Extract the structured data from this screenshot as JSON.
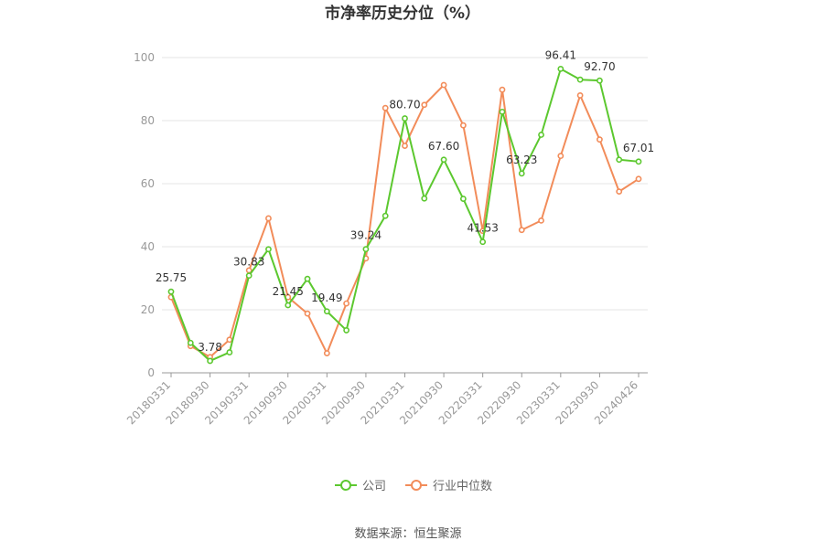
{
  "chart_data": {
    "type": "line",
    "title": "市净率历史分位（%）",
    "source": "数据来源：恒生聚源",
    "xlabel": "",
    "ylabel": "",
    "ylim": [
      0,
      100
    ],
    "yticks": [
      0,
      20,
      40,
      60,
      80,
      100
    ],
    "grid": true,
    "legend_position": "bottom",
    "x_tick_labels": [
      "20180331",
      "20180930",
      "20190331",
      "20190930",
      "20200331",
      "20200930",
      "20210331",
      "20210930",
      "20220331",
      "20220930",
      "20230331",
      "20230930",
      "20240426"
    ],
    "series": [
      {
        "name": "公司",
        "color": "#5cc82f",
        "values": [
          25.75,
          9.5,
          3.78,
          6.5,
          30.83,
          39.2,
          21.45,
          29.8,
          19.49,
          13.5,
          39.24,
          49.8,
          80.7,
          55.3,
          67.6,
          55.2,
          41.53,
          82.8,
          63.23,
          75.5,
          96.41,
          93.0,
          92.7,
          67.6,
          67.01
        ]
      },
      {
        "name": "行业中位数",
        "color": "#f28c5a",
        "values": [
          24.0,
          8.5,
          5.0,
          10.5,
          32.5,
          49.0,
          24.0,
          18.8,
          6.2,
          22.0,
          36.3,
          84.0,
          72.0,
          85.0,
          91.3,
          78.5,
          45.0,
          89.8,
          45.3,
          48.3,
          68.8,
          88.0,
          74.0,
          57.5,
          61.5
        ]
      }
    ],
    "annotations": [
      {
        "series": 0,
        "index": 0,
        "text": "25.75"
      },
      {
        "series": 0,
        "index": 2,
        "text": "3.78"
      },
      {
        "series": 0,
        "index": 4,
        "text": "30.83"
      },
      {
        "series": 0,
        "index": 6,
        "text": "21.45"
      },
      {
        "series": 0,
        "index": 8,
        "text": "19.49"
      },
      {
        "series": 0,
        "index": 10,
        "text": "39.24"
      },
      {
        "series": 0,
        "index": 12,
        "text": "80.70"
      },
      {
        "series": 0,
        "index": 14,
        "text": "67.60"
      },
      {
        "series": 0,
        "index": 16,
        "text": "41.53"
      },
      {
        "series": 0,
        "index": 18,
        "text": "63.23"
      },
      {
        "series": 0,
        "index": 20,
        "text": "96.41"
      },
      {
        "series": 0,
        "index": 22,
        "text": "92.70"
      },
      {
        "series": 0,
        "index": 24,
        "text": "67.01"
      }
    ]
  }
}
